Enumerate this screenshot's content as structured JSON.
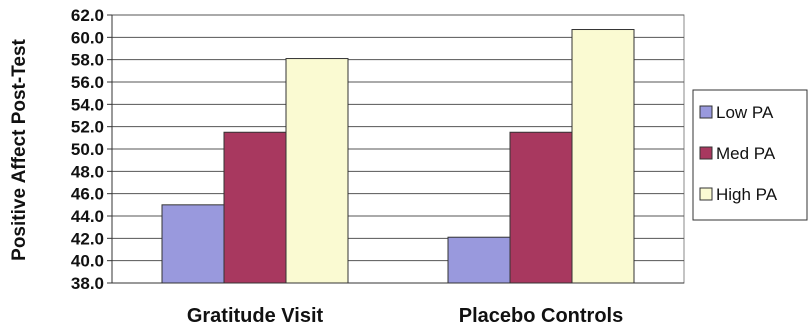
{
  "chart_data": {
    "type": "bar",
    "title": "",
    "xlabel": "",
    "ylabel": "Positive Affect Post-Test",
    "categories": [
      "Gratitude Visit",
      "Placebo Controls"
    ],
    "series": [
      {
        "name": "Low PA",
        "values": [
          45.0,
          42.1
        ],
        "color": "#9999dd"
      },
      {
        "name": "Med PA",
        "values": [
          51.5,
          51.5
        ],
        "color": "#a8385f"
      },
      {
        "name": "High PA",
        "values": [
          58.1,
          60.7
        ],
        "color": "#fafad2"
      }
    ],
    "ylim": [
      38.0,
      62.0
    ],
    "yticks": [
      "38.0",
      "40.0",
      "42.0",
      "44.0",
      "46.0",
      "48.0",
      "50.0",
      "52.0",
      "54.0",
      "56.0",
      "58.0",
      "60.0",
      "62.0"
    ],
    "grid": true,
    "legend_position": "right"
  }
}
